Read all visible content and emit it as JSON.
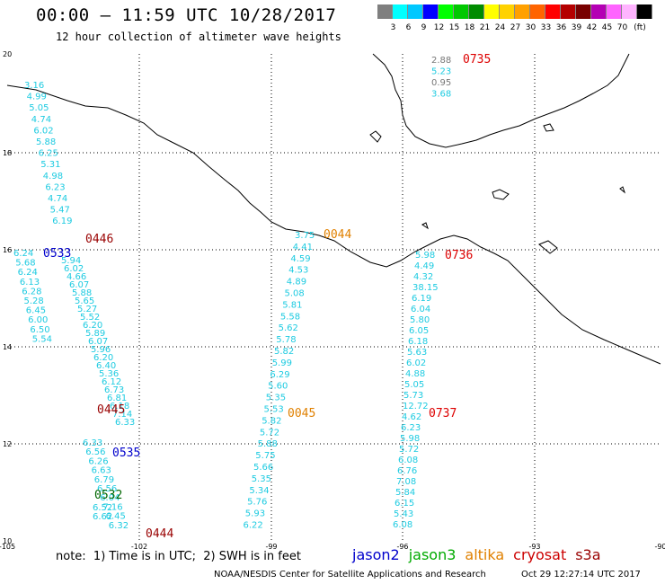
{
  "header": {
    "title": "00:00 – 11:59 UTC 10/28/2017",
    "subtitle": "12 hour collection of altimeter wave heights"
  },
  "colorbar": {
    "colors": [
      "#7f7f7f",
      "#00ffff",
      "#00c8ff",
      "#0000ff",
      "#00ff00",
      "#00c800",
      "#008c00",
      "#ffff00",
      "#ffd200",
      "#ffa000",
      "#ff6400",
      "#ff0000",
      "#b40000",
      "#780000",
      "#b400b4",
      "#ff64ff",
      "#ffb4ff",
      "#000000"
    ],
    "labels": [
      "3",
      "6",
      "9",
      "12",
      "15",
      "18",
      "21",
      "24",
      "27",
      "30",
      "33",
      "36",
      "39",
      "42",
      "45",
      "70",
      "(ft)"
    ]
  },
  "axes": {
    "lat_ticks": [
      "20",
      "18",
      "16",
      "14",
      "12",
      "10"
    ],
    "lon_ticks": [
      "-105",
      "-102",
      "-99",
      "-96",
      "-93",
      "-90"
    ]
  },
  "tracks": [
    {
      "satellite": "cryosat",
      "color": "#990000",
      "points": [
        "3.16",
        "4.99",
        "5.05",
        "4.74",
        "6.02",
        "5.88",
        "6.25",
        "5.31",
        "4.98",
        "6.23",
        "4.74",
        "5.47",
        "6.19"
      ],
      "time": "0446"
    },
    {
      "satellite": "jason2",
      "color": "#0000cc",
      "points": [
        "6.24",
        "5.68",
        "6.24",
        "6.13",
        "6.28",
        "5.28",
        "6.45",
        "6.00",
        "6.50",
        "5.54"
      ],
      "time": "0533"
    },
    {
      "satellite": "cryosat",
      "color": "#990000",
      "points": [
        "5.94",
        "6.02",
        "4.66",
        "6.07",
        "5.88",
        "5.65",
        "5.27",
        "5.52",
        "6.20",
        "5.89",
        "6.07",
        "5.96",
        "6.20",
        "6.40",
        "5.36",
        "6.12",
        "6.73",
        "6.81",
        "6.18",
        "7.14",
        "6.33"
      ],
      "time": "0445"
    },
    {
      "satellite": "jason2",
      "color": "#0000cc",
      "points": [
        "6.33",
        "6.56",
        "6.26",
        "6.63",
        "6.79",
        "6.56",
        "6.04",
        "7.16",
        "6.45",
        "6.32"
      ],
      "time": "0535"
    },
    {
      "satellite": "jason3",
      "color": "#006600",
      "points": [
        "6.52",
        "6.62"
      ],
      "time": "0532"
    },
    {
      "satellite": "cryosat",
      "color": "#990000",
      "points": [],
      "time": "0444"
    },
    {
      "satellite": "altika",
      "color": "#e08000",
      "points": [
        "3.75",
        "4.41",
        "4.59",
        "4.53",
        "4.89",
        "5.08",
        "5.81",
        "5.58",
        "5.62",
        "5.78",
        "5.82",
        "5.99",
        "6.29",
        "5.60",
        "5.35",
        "5.53",
        "5.82",
        "5.72",
        "5.88",
        "5.75",
        "5.66",
        "5.35",
        "5.34",
        "5.76",
        "5.93",
        "6.22"
      ],
      "time": "0044"
    },
    {
      "satellite": "altika",
      "color": "#e08000",
      "points": [],
      "time": "0045"
    },
    {
      "satellite": "s3a",
      "color": "#dd0000",
      "points": [
        "5.98",
        "4.49",
        "4.32",
        "38.15",
        "6.19",
        "6.04",
        "5.80",
        "6.05",
        "6.18",
        "5.63",
        "6.02",
        "4.88",
        "5.05",
        "5.73",
        "12.72",
        "4.62",
        "6.23",
        "5.98",
        "5.72",
        "6.08",
        "6.76",
        "7.08",
        "5.84",
        "6.15",
        "5.43",
        "6.08"
      ],
      "time": "0736"
    },
    {
      "satellite": "s3a",
      "color": "#dd0000",
      "points": [
        "2.88",
        "5.23",
        "0.95",
        "3.68"
      ],
      "time": "0735"
    },
    {
      "satellite": "s3a",
      "color": "#dd0000",
      "points": [],
      "time": "0737"
    }
  ],
  "footer": {
    "note": "note:  1) Time is in UTC;  2) SWH is in feet",
    "legend": [
      {
        "label": "jason2",
        "color": "#0000cc"
      },
      {
        "label": "jason3",
        "color": "#00aa00"
      },
      {
        "label": "altika",
        "color": "#e08000"
      },
      {
        "label": "cryosat",
        "color": "#cc0000"
      },
      {
        "label": "s3a",
        "color": "#990000"
      }
    ],
    "credit": "NOAA/NESDIS Center for Satellite Applications and Research",
    "timestamp": "Oct 29 12:27:14 UTC 2017"
  }
}
